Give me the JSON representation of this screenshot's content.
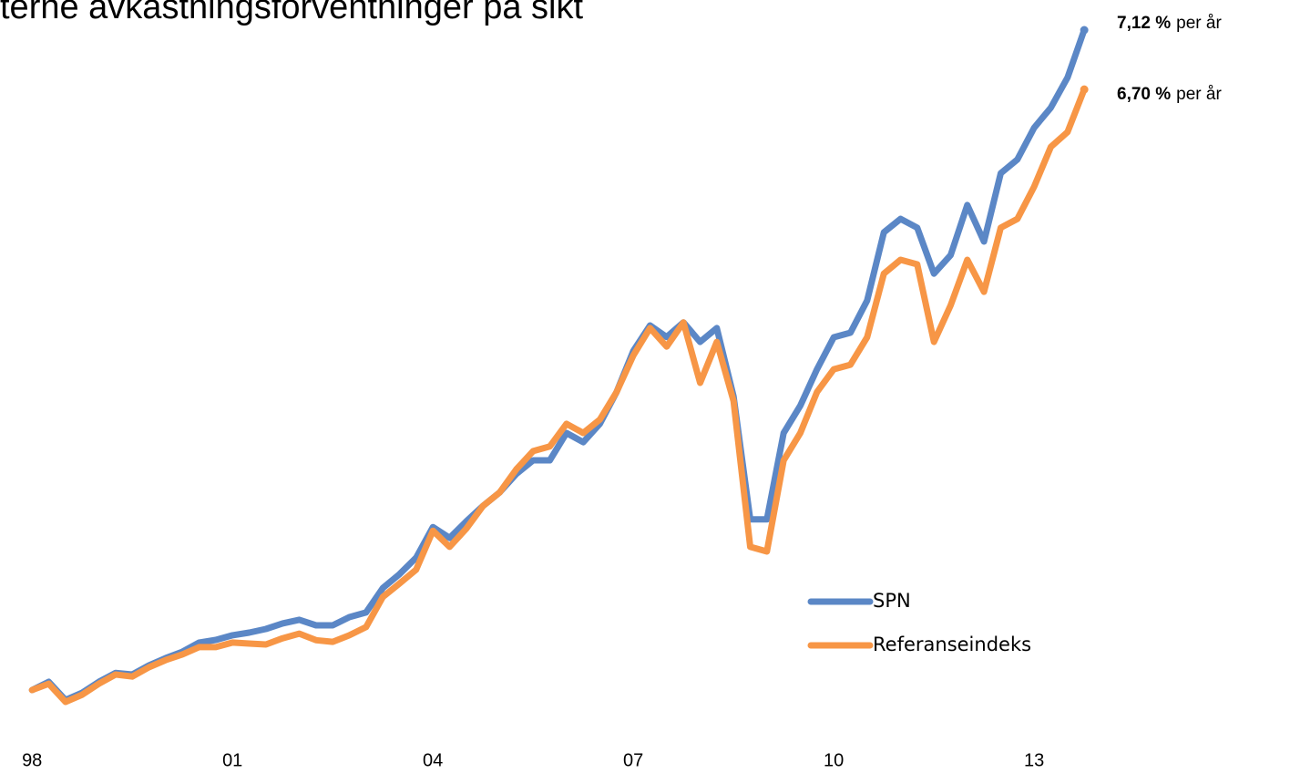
{
  "chart_data": {
    "type": "line",
    "title": "terne avkastningsforventninger på sikt",
    "x": [
      1998,
      1998.25,
      1998.5,
      1998.75,
      1999,
      1999.25,
      1999.5,
      1999.75,
      2000,
      2000.25,
      2000.5,
      2000.75,
      2001,
      2001.25,
      2001.5,
      2001.75,
      2002,
      2002.25,
      2002.5,
      2002.75,
      2003,
      2003.25,
      2003.5,
      2003.75,
      2004,
      2004.25,
      2004.5,
      2004.75,
      2005,
      2005.25,
      2005.5,
      2005.75,
      2006,
      2006.25,
      2006.5,
      2006.75,
      2007,
      2007.25,
      2007.5,
      2007.75,
      2008,
      2008.25,
      2008.5,
      2008.75,
      2009,
      2009.25,
      2009.5,
      2009.75,
      2010,
      2010.25,
      2010.5,
      2010.75,
      2011,
      2011.25,
      2011.5,
      2011.75,
      2012,
      2012.25,
      2012.5,
      2012.75,
      2013,
      2013.25,
      2013.5,
      2013.75
    ],
    "series": [
      {
        "name": "SPN",
        "color": "#5b87c6",
        "values": [
          100,
          102.5,
          97,
          99.2,
          102.5,
          105.2,
          104.7,
          107.5,
          109.7,
          111.6,
          114.4,
          115.2,
          116.6,
          117.4,
          118.5,
          120.2,
          121.3,
          119.6,
          119.6,
          122.1,
          123.5,
          130.9,
          135.1,
          140.1,
          149.4,
          146.1,
          151.1,
          155.8,
          159.9,
          165.5,
          169.6,
          169.6,
          177.9,
          175.1,
          180.7,
          190.3,
          202.8,
          210.5,
          207.0,
          211.4,
          205.5,
          209.7,
          189.0,
          151.7,
          151.7,
          177.9,
          186.2,
          197.2,
          206.9,
          208.3,
          218.0,
          238.7,
          242.8,
          240.1,
          226.2,
          231.8,
          247.0,
          235.9,
          256.6,
          260.8,
          270.4,
          276.5,
          285.6,
          300
        ]
      },
      {
        "name": "Referanseindeks",
        "color": "#f79646",
        "values": [
          100,
          101.9,
          96.4,
          98.6,
          101.9,
          104.7,
          104.1,
          106.9,
          109.1,
          110.8,
          113.0,
          113.0,
          114.4,
          114.1,
          113.8,
          115.7,
          117.1,
          115.1,
          114.6,
          116.6,
          119.1,
          128.2,
          132.3,
          136.5,
          148.3,
          143.4,
          148.9,
          155.8,
          159.9,
          166.9,
          172.4,
          173.8,
          180.7,
          177.9,
          182.0,
          190.3,
          201.4,
          209.7,
          204.1,
          211.4,
          193.1,
          205.5,
          187.6,
          143.4,
          142.0,
          169.6,
          177.9,
          190.3,
          197.2,
          198.6,
          206.9,
          226.2,
          230.4,
          229.0,
          205.5,
          216.6,
          230.4,
          220.7,
          240.1,
          242.8,
          252.5,
          264.6,
          269.1,
          282.0
        ]
      }
    ],
    "xlim": [
      1997.52,
      2016.83
    ],
    "xticks": [
      {
        "value": 1998,
        "label": "98"
      },
      {
        "value": 2001,
        "label": "01"
      },
      {
        "value": 2004,
        "label": "04"
      },
      {
        "value": 2007,
        "label": "07"
      },
      {
        "value": 2010,
        "label": "10"
      },
      {
        "value": 2013,
        "label": "13"
      }
    ],
    "ylim": [
      90,
      305
    ],
    "annotations": [
      {
        "value": "7,12 %",
        "text": "per år"
      },
      {
        "value": "6,70 %",
        "text": "per år"
      }
    ],
    "legend": "lower right"
  }
}
